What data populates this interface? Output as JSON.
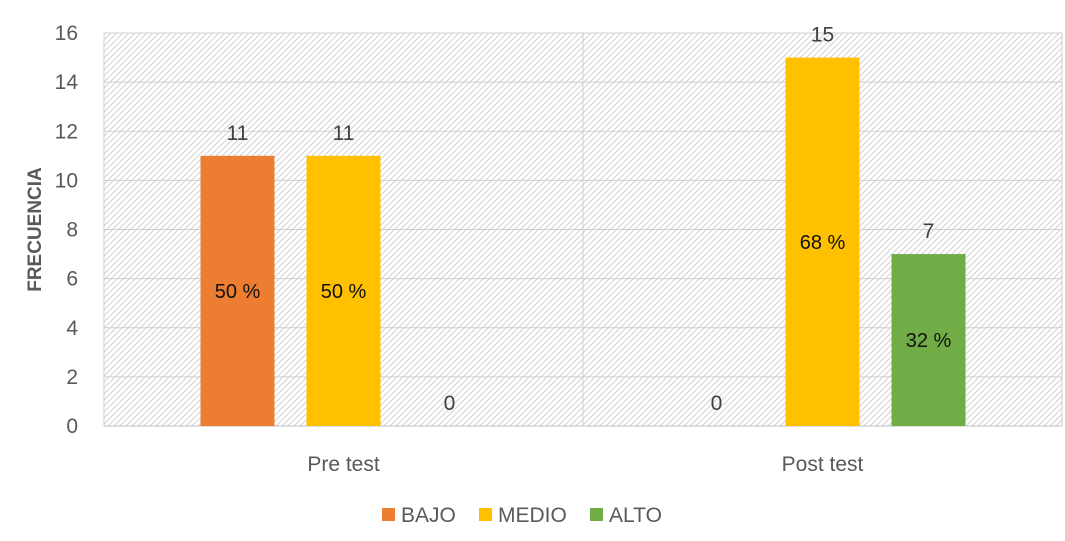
{
  "chart_data": {
    "type": "bar",
    "title": "",
    "xlabel": "",
    "ylabel": "FRECUENCIA",
    "ylim": [
      0,
      16
    ],
    "yticks": [
      0,
      2,
      4,
      6,
      8,
      10,
      12,
      14,
      16
    ],
    "categories": [
      "Pre test",
      "Post test"
    ],
    "series": [
      {
        "name": "BAJO",
        "color": "#ED7D31",
        "values": [
          11,
          0
        ],
        "pct_labels": [
          "50 %",
          ""
        ]
      },
      {
        "name": "MEDIO",
        "color": "#FFC000",
        "values": [
          11,
          15
        ],
        "pct_labels": [
          "50 %",
          "68 %"
        ]
      },
      {
        "name": "ALTO",
        "color": "#70AD47",
        "values": [
          0,
          7
        ],
        "pct_labels": [
          "",
          "32 %"
        ]
      }
    ],
    "grid": true,
    "legend_position": "bottom"
  }
}
